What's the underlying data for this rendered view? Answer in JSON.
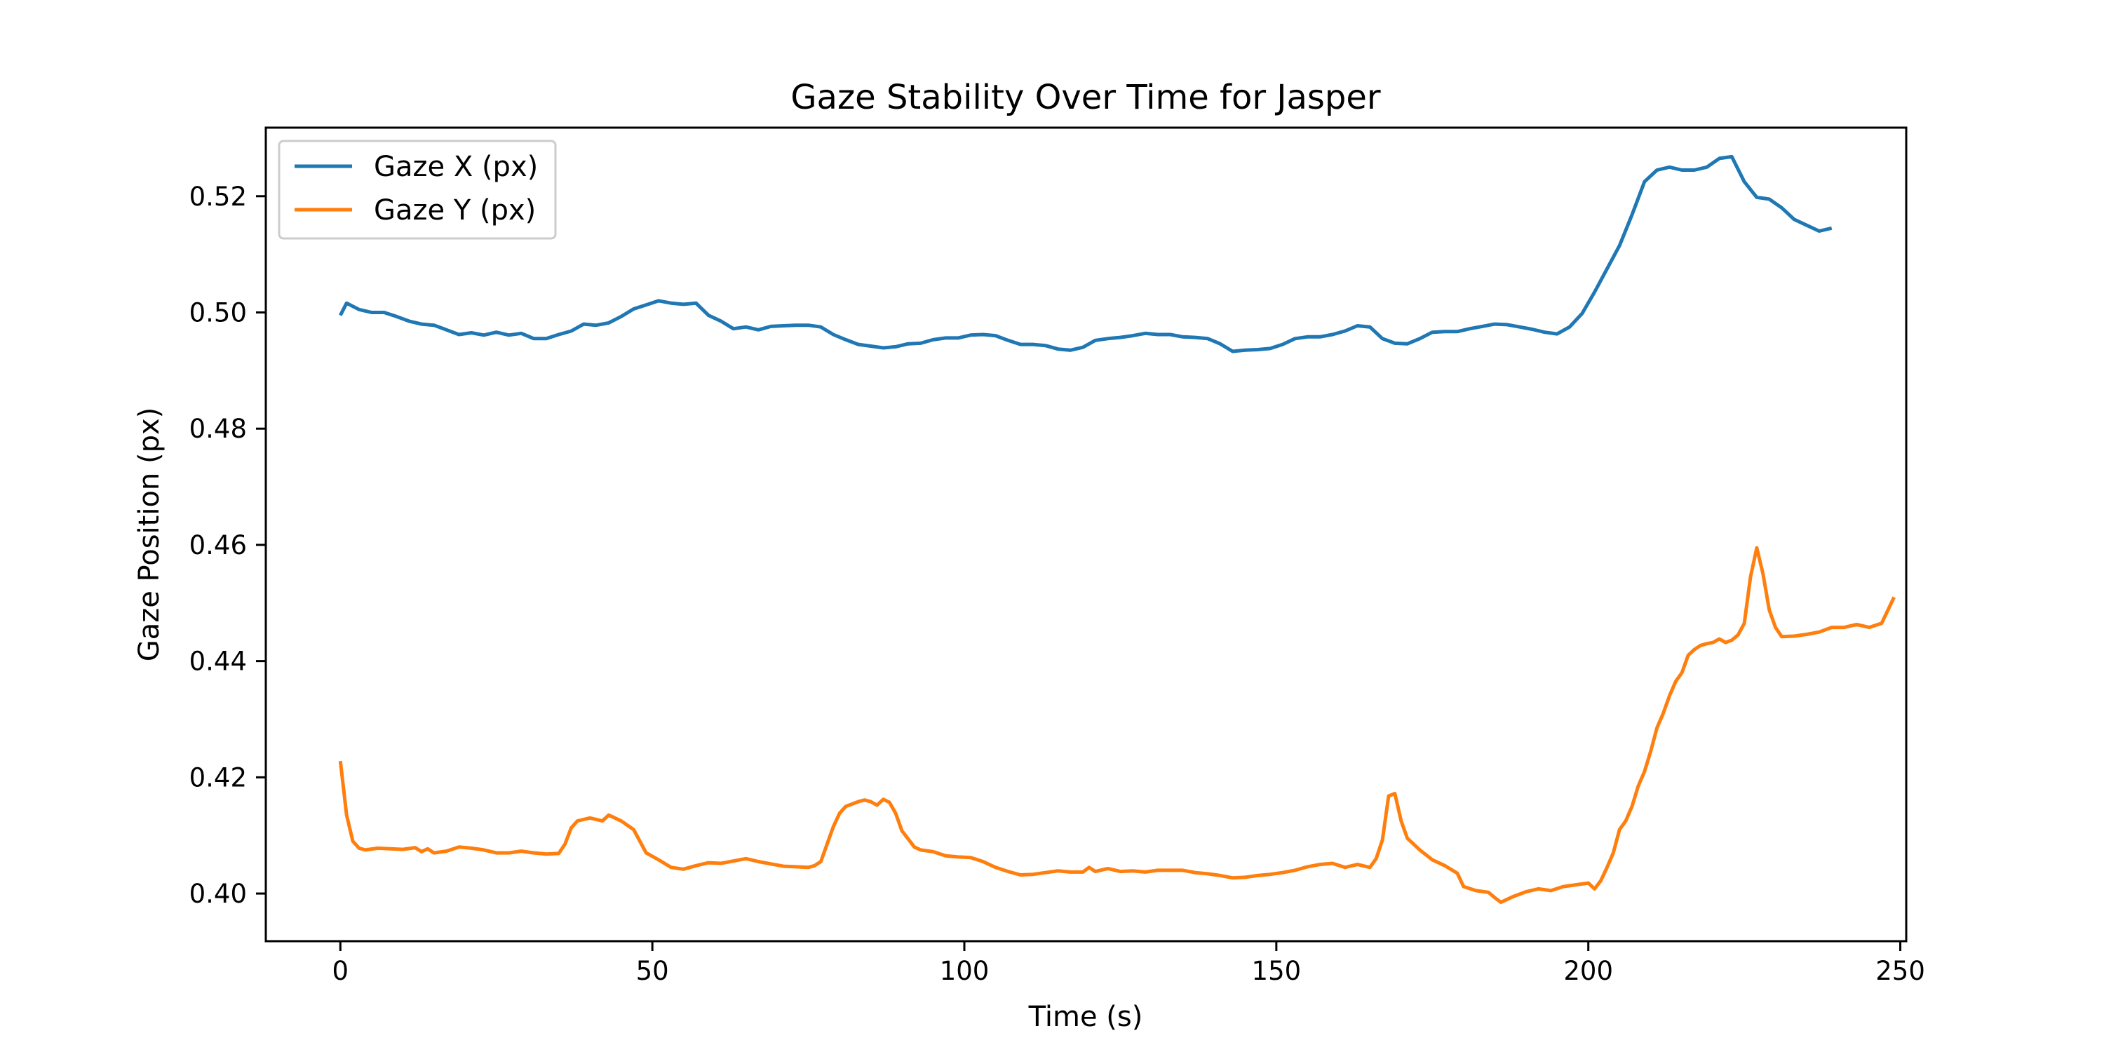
{
  "chart_data": {
    "type": "line",
    "title": "Gaze Stability Over Time for Jasper",
    "xlabel": "Time (s)",
    "ylabel": "Gaze Position (px)",
    "xlim": [
      -11.95,
      250.95
    ],
    "ylim": [
      0.3918,
      0.5318
    ],
    "x_ticks": [
      0,
      50,
      100,
      150,
      200,
      250
    ],
    "y_ticks": [
      0.4,
      0.42,
      0.44,
      0.46,
      0.48,
      0.5,
      0.52
    ],
    "grid": false,
    "legend": "upper left",
    "series": [
      {
        "name": "Gaze X (px)",
        "color": "#1f77b4",
        "points": [
          [
            0,
            0.4995
          ],
          [
            1,
            0.5016
          ],
          [
            3,
            0.5005
          ],
          [
            5,
            0.5
          ],
          [
            7,
            0.5
          ],
          [
            9,
            0.4993
          ],
          [
            11,
            0.4985
          ],
          [
            13,
            0.498
          ],
          [
            15,
            0.4978
          ],
          [
            17,
            0.497
          ],
          [
            19,
            0.4962
          ],
          [
            21,
            0.4965
          ],
          [
            23,
            0.4961
          ],
          [
            25,
            0.4966
          ],
          [
            27,
            0.4961
          ],
          [
            29,
            0.4964
          ],
          [
            31,
            0.4955
          ],
          [
            33,
            0.4955
          ],
          [
            35,
            0.4962
          ],
          [
            37,
            0.4968
          ],
          [
            39,
            0.498
          ],
          [
            41,
            0.4978
          ],
          [
            43,
            0.4982
          ],
          [
            45,
            0.4993
          ],
          [
            47,
            0.5006
          ],
          [
            49,
            0.5013
          ],
          [
            51,
            0.502
          ],
          [
            53,
            0.5016
          ],
          [
            55,
            0.5014
          ],
          [
            57,
            0.5016
          ],
          [
            59,
            0.4995
          ],
          [
            61,
            0.4985
          ],
          [
            63,
            0.4972
          ],
          [
            65,
            0.4975
          ],
          [
            67,
            0.497
          ],
          [
            69,
            0.4976
          ],
          [
            71,
            0.4977
          ],
          [
            73,
            0.4978
          ],
          [
            75,
            0.4978
          ],
          [
            77,
            0.4975
          ],
          [
            79,
            0.4962
          ],
          [
            81,
            0.4953
          ],
          [
            83,
            0.4945
          ],
          [
            85,
            0.4942
          ],
          [
            87,
            0.4939
          ],
          [
            89,
            0.4941
          ],
          [
            91,
            0.4946
          ],
          [
            93,
            0.4947
          ],
          [
            95,
            0.4953
          ],
          [
            97,
            0.4956
          ],
          [
            99,
            0.4956
          ],
          [
            101,
            0.4961
          ],
          [
            103,
            0.4962
          ],
          [
            105,
            0.496
          ],
          [
            107,
            0.4952
          ],
          [
            109,
            0.4945
          ],
          [
            111,
            0.4945
          ],
          [
            113,
            0.4943
          ],
          [
            115,
            0.4937
          ],
          [
            117,
            0.4935
          ],
          [
            119,
            0.494
          ],
          [
            121,
            0.4952
          ],
          [
            123,
            0.4955
          ],
          [
            125,
            0.4957
          ],
          [
            127,
            0.496
          ],
          [
            129,
            0.4964
          ],
          [
            131,
            0.4962
          ],
          [
            133,
            0.4962
          ],
          [
            135,
            0.4958
          ],
          [
            137,
            0.4957
          ],
          [
            139,
            0.4955
          ],
          [
            141,
            0.4946
          ],
          [
            143,
            0.4933
          ],
          [
            145,
            0.4935
          ],
          [
            147,
            0.4936
          ],
          [
            149,
            0.4938
          ],
          [
            151,
            0.4945
          ],
          [
            153,
            0.4955
          ],
          [
            155,
            0.4958
          ],
          [
            157,
            0.4958
          ],
          [
            159,
            0.4962
          ],
          [
            161,
            0.4968
          ],
          [
            163,
            0.4977
          ],
          [
            165,
            0.4975
          ],
          [
            167,
            0.4955
          ],
          [
            169,
            0.4947
          ],
          [
            171,
            0.4946
          ],
          [
            173,
            0.4955
          ],
          [
            175,
            0.4966
          ],
          [
            177,
            0.4967
          ],
          [
            179,
            0.4967
          ],
          [
            181,
            0.4972
          ],
          [
            183,
            0.4976
          ],
          [
            185,
            0.498
          ],
          [
            187,
            0.4979
          ],
          [
            189,
            0.4975
          ],
          [
            191,
            0.4971
          ],
          [
            193,
            0.4966
          ],
          [
            195,
            0.4963
          ],
          [
            197,
            0.4975
          ],
          [
            199,
            0.4998
          ],
          [
            201,
            0.5035
          ],
          [
            203,
            0.5075
          ],
          [
            205,
            0.5115
          ],
          [
            207,
            0.5168
          ],
          [
            209,
            0.5225
          ],
          [
            211,
            0.5245
          ],
          [
            213,
            0.525
          ],
          [
            215,
            0.5245
          ],
          [
            217,
            0.5245
          ],
          [
            219,
            0.525
          ],
          [
            221,
            0.5265
          ],
          [
            223,
            0.5268
          ],
          [
            225,
            0.5225
          ],
          [
            227,
            0.5198
          ],
          [
            229,
            0.5195
          ],
          [
            231,
            0.518
          ],
          [
            233,
            0.516
          ],
          [
            235,
            0.515
          ],
          [
            237,
            0.514
          ],
          [
            239,
            0.5145
          ]
        ]
      },
      {
        "name": "Gaze Y (px)",
        "color": "#ff7f0e",
        "points": [
          [
            0,
            0.4228
          ],
          [
            1,
            0.4135
          ],
          [
            2,
            0.409
          ],
          [
            3,
            0.4078
          ],
          [
            4,
            0.4075
          ],
          [
            6,
            0.4078
          ],
          [
            8,
            0.4077
          ],
          [
            10,
            0.4076
          ],
          [
            12,
            0.4079
          ],
          [
            13,
            0.4072
          ],
          [
            14,
            0.4077
          ],
          [
            15,
            0.407
          ],
          [
            17,
            0.4073
          ],
          [
            19,
            0.408
          ],
          [
            21,
            0.4078
          ],
          [
            23,
            0.4075
          ],
          [
            25,
            0.407
          ],
          [
            27,
            0.407
          ],
          [
            29,
            0.4073
          ],
          [
            31,
            0.407
          ],
          [
            33,
            0.4068
          ],
          [
            35,
            0.4069
          ],
          [
            36,
            0.4085
          ],
          [
            37,
            0.4113
          ],
          [
            38,
            0.4125
          ],
          [
            40,
            0.413
          ],
          [
            42,
            0.4125
          ],
          [
            43,
            0.4135
          ],
          [
            45,
            0.4125
          ],
          [
            47,
            0.411
          ],
          [
            49,
            0.407
          ],
          [
            51,
            0.4058
          ],
          [
            53,
            0.4045
          ],
          [
            55,
            0.4042
          ],
          [
            57,
            0.4048
          ],
          [
            59,
            0.4053
          ],
          [
            61,
            0.4052
          ],
          [
            63,
            0.4056
          ],
          [
            65,
            0.406
          ],
          [
            67,
            0.4055
          ],
          [
            69,
            0.4051
          ],
          [
            71,
            0.4047
          ],
          [
            73,
            0.4046
          ],
          [
            75,
            0.4045
          ],
          [
            76,
            0.4048
          ],
          [
            77,
            0.4055
          ],
          [
            78,
            0.4085
          ],
          [
            79,
            0.4115
          ],
          [
            80,
            0.4138
          ],
          [
            81,
            0.415
          ],
          [
            83,
            0.4158
          ],
          [
            84,
            0.4161
          ],
          [
            85,
            0.4158
          ],
          [
            86,
            0.4152
          ],
          [
            87,
            0.4162
          ],
          [
            88,
            0.4157
          ],
          [
            89,
            0.4138
          ],
          [
            90,
            0.4108
          ],
          [
            92,
            0.408
          ],
          [
            93,
            0.4075
          ],
          [
            95,
            0.4072
          ],
          [
            97,
            0.4065
          ],
          [
            99,
            0.4063
          ],
          [
            101,
            0.4062
          ],
          [
            103,
            0.4055
          ],
          [
            105,
            0.4045
          ],
          [
            107,
            0.4038
          ],
          [
            109,
            0.4032
          ],
          [
            111,
            0.4033
          ],
          [
            113,
            0.4036
          ],
          [
            115,
            0.4039
          ],
          [
            117,
            0.4037
          ],
          [
            119,
            0.4037
          ],
          [
            120,
            0.4045
          ],
          [
            121,
            0.4038
          ],
          [
            123,
            0.4043
          ],
          [
            125,
            0.4038
          ],
          [
            127,
            0.4039
          ],
          [
            129,
            0.4037
          ],
          [
            131,
            0.404
          ],
          [
            133,
            0.404
          ],
          [
            135,
            0.404
          ],
          [
            137,
            0.4036
          ],
          [
            139,
            0.4034
          ],
          [
            141,
            0.4031
          ],
          [
            143,
            0.4027
          ],
          [
            145,
            0.4028
          ],
          [
            147,
            0.4031
          ],
          [
            149,
            0.4033
          ],
          [
            151,
            0.4036
          ],
          [
            153,
            0.404
          ],
          [
            155,
            0.4046
          ],
          [
            157,
            0.405
          ],
          [
            159,
            0.4052
          ],
          [
            161,
            0.4045
          ],
          [
            163,
            0.405
          ],
          [
            165,
            0.4045
          ],
          [
            166,
            0.406
          ],
          [
            167,
            0.4092
          ],
          [
            168,
            0.4168
          ],
          [
            169,
            0.4172
          ],
          [
            170,
            0.4125
          ],
          [
            171,
            0.4095
          ],
          [
            173,
            0.4075
          ],
          [
            175,
            0.4058
          ],
          [
            177,
            0.4048
          ],
          [
            179,
            0.4035
          ],
          [
            180,
            0.4012
          ],
          [
            182,
            0.4005
          ],
          [
            184,
            0.4002
          ],
          [
            185,
            0.3993
          ],
          [
            186,
            0.3985
          ],
          [
            188,
            0.3995
          ],
          [
            190,
            0.4003
          ],
          [
            192,
            0.4008
          ],
          [
            194,
            0.4005
          ],
          [
            196,
            0.4012
          ],
          [
            198,
            0.4015
          ],
          [
            200,
            0.4018
          ],
          [
            201,
            0.4008
          ],
          [
            202,
            0.4022
          ],
          [
            203,
            0.4045
          ],
          [
            204,
            0.407
          ],
          [
            205,
            0.411
          ],
          [
            206,
            0.4125
          ],
          [
            207,
            0.415
          ],
          [
            208,
            0.4185
          ],
          [
            209,
            0.421
          ],
          [
            210,
            0.4245
          ],
          [
            211,
            0.4285
          ],
          [
            212,
            0.431
          ],
          [
            213,
            0.434
          ],
          [
            214,
            0.4365
          ],
          [
            215,
            0.438
          ],
          [
            216,
            0.441
          ],
          [
            217,
            0.442
          ],
          [
            218,
            0.4427
          ],
          [
            219,
            0.443
          ],
          [
            220,
            0.4432
          ],
          [
            221,
            0.4438
          ],
          [
            222,
            0.4432
          ],
          [
            223,
            0.4436
          ],
          [
            224,
            0.4445
          ],
          [
            225,
            0.4465
          ],
          [
            226,
            0.4545
          ],
          [
            227,
            0.4595
          ],
          [
            228,
            0.455
          ],
          [
            229,
            0.4488
          ],
          [
            230,
            0.4458
          ],
          [
            231,
            0.4442
          ],
          [
            233,
            0.4443
          ],
          [
            235,
            0.4446
          ],
          [
            237,
            0.445
          ],
          [
            239,
            0.4458
          ],
          [
            241,
            0.4458
          ],
          [
            243,
            0.4463
          ],
          [
            245,
            0.4458
          ],
          [
            247,
            0.4465
          ],
          [
            249,
            0.451
          ]
        ]
      }
    ]
  }
}
